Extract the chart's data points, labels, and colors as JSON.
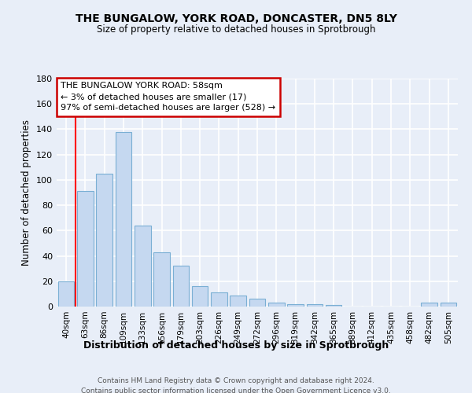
{
  "title": "THE BUNGALOW, YORK ROAD, DONCASTER, DN5 8LY",
  "subtitle": "Size of property relative to detached houses in Sprotbrough",
  "xlabel": "Distribution of detached houses by size in Sprotbrough",
  "ylabel": "Number of detached properties",
  "categories": [
    "40sqm",
    "63sqm",
    "86sqm",
    "109sqm",
    "133sqm",
    "156sqm",
    "179sqm",
    "203sqm",
    "226sqm",
    "249sqm",
    "272sqm",
    "296sqm",
    "319sqm",
    "342sqm",
    "365sqm",
    "389sqm",
    "412sqm",
    "435sqm",
    "458sqm",
    "482sqm",
    "505sqm"
  ],
  "values": [
    20,
    91,
    105,
    138,
    64,
    43,
    32,
    16,
    11,
    9,
    6,
    3,
    2,
    2,
    1,
    0,
    0,
    0,
    0,
    3,
    3
  ],
  "bar_color": "#c5d8f0",
  "bar_edge_color": "#7aafd4",
  "annotation_title": "THE BUNGALOW YORK ROAD: 58sqm",
  "annotation_line1": "← 3% of detached houses are smaller (17)",
  "annotation_line2": "97% of semi-detached houses are larger (528) →",
  "annotation_box_color": "#ffffff",
  "annotation_box_edge_color": "#cc0000",
  "ylim": [
    0,
    180
  ],
  "yticks": [
    0,
    20,
    40,
    60,
    80,
    100,
    120,
    140,
    160,
    180
  ],
  "footer_line1": "Contains HM Land Registry data © Crown copyright and database right 2024.",
  "footer_line2": "Contains public sector information licensed under the Open Government Licence v3.0.",
  "background_color": "#e8eef8",
  "plot_background_color": "#e8eef8",
  "grid_color": "#ffffff",
  "red_line_bar_index": 1
}
